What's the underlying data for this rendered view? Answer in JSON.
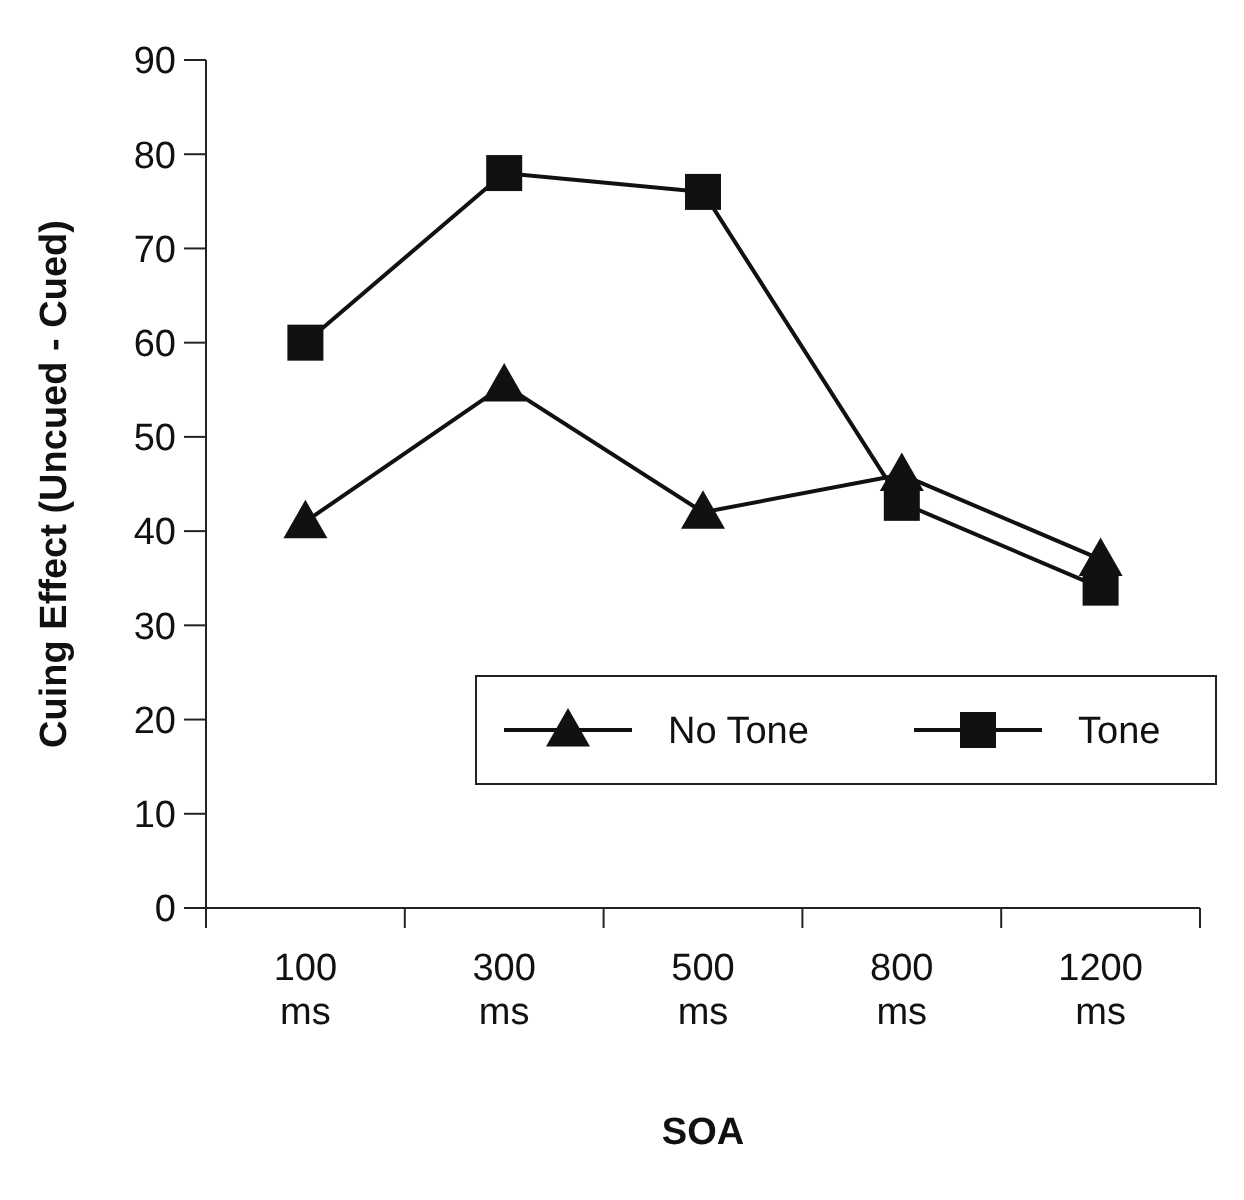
{
  "chart_data": {
    "type": "line",
    "xlabel": "SOA",
    "ylabel": "Cuing Effect (Uncued - Cued)",
    "categories": [
      "100 ms",
      "300 ms",
      "500 ms",
      "800 ms",
      "1200 ms"
    ],
    "series": [
      {
        "name": "No Tone",
        "color": "#111111",
        "marker": "triangle",
        "values": [
          41,
          55.5,
          42,
          46,
          37
        ]
      },
      {
        "name": "Tone",
        "color": "#111111",
        "marker": "square",
        "values": [
          60,
          78,
          76,
          43,
          34
        ]
      }
    ],
    "ylim": [
      0,
      90
    ],
    "yticks": [
      0,
      10,
      20,
      30,
      40,
      50,
      60,
      70,
      80,
      90
    ],
    "grid": false,
    "legend": "bottom right",
    "line_style": "solid"
  }
}
